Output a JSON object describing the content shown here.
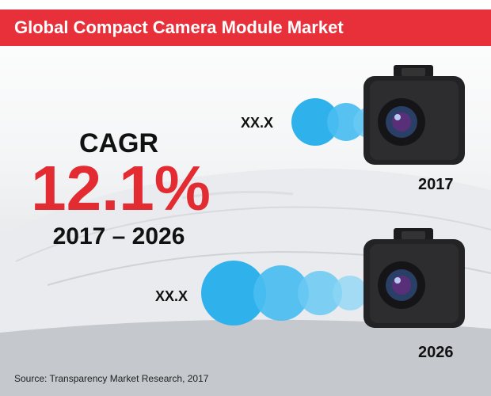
{
  "header": {
    "title": "Global Compact Camera Module Market"
  },
  "cagr": {
    "label": "CAGR",
    "value": "12.1%",
    "period": "2017 – 2026"
  },
  "markers": [
    {
      "value_label": "XX.X",
      "year": "2017"
    },
    {
      "value_label": "XX.X",
      "year": "2026"
    }
  ],
  "colors": {
    "header": "#e8303a",
    "accent": "#e32b32",
    "bubble": "#2fb2ec"
  },
  "icons": {
    "camera": "dashcam-icon"
  },
  "footer": {
    "source": "Source: Transparency Market Research, 2017"
  }
}
